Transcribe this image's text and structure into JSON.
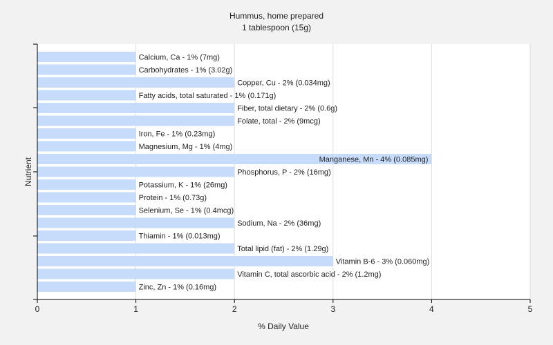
{
  "chart_data": {
    "type": "bar",
    "orientation": "horizontal",
    "title": "Hummus, home prepared",
    "subtitle": "1 tablespoon (15g)",
    "xlabel": "% Daily Value",
    "ylabel": "Nutrient",
    "xlim": [
      0,
      5
    ],
    "xticks": [
      "0",
      "1",
      "2",
      "3",
      "4",
      "5"
    ],
    "grid": true,
    "bar_color": "#c6dcfa",
    "categories": [
      "Calcium, Ca",
      "Carbohydrates",
      "Copper, Cu",
      "Fatty acids, total saturated",
      "Fiber, total dietary",
      "Folate, total",
      "Iron, Fe",
      "Magnesium, Mg",
      "Manganese, Mn",
      "Phosphorus, P",
      "Potassium, K",
      "Protein",
      "Selenium, Se",
      "Sodium, Na",
      "Thiamin",
      "Total lipid (fat)",
      "Vitamin B-6",
      "Vitamin C, total ascorbic acid",
      "Zinc, Zn"
    ],
    "values": [
      1,
      1,
      2,
      1,
      2,
      2,
      1,
      1,
      4,
      2,
      1,
      1,
      1,
      2,
      1,
      2,
      3,
      2,
      1
    ],
    "labels": [
      "Calcium, Ca - 1% (7mg)",
      "Carbohydrates - 1% (3.02g)",
      "Copper, Cu - 2% (0.034mg)",
      "Fatty acids, total saturated - 1% (0.171g)",
      "Fiber, total dietary - 2% (0.6g)",
      "Folate, total - 2% (9mcg)",
      "Iron, Fe - 1% (0.23mg)",
      "Magnesium, Mg - 1% (4mg)",
      "Manganese, Mn - 4% (0.085mg)",
      "Phosphorus, P - 2% (16mg)",
      "Potassium, K - 1% (26mg)",
      "Protein - 1% (0.73g)",
      "Selenium, Se - 1% (0.4mcg)",
      "Sodium, Na - 2% (36mg)",
      "Thiamin - 1% (0.013mg)",
      "Total lipid (fat) - 2% (1.29g)",
      "Vitamin B-6 - 3% (0.060mg)",
      "Vitamin C, total ascorbic acid - 2% (1.2mg)",
      "Zinc, Zn - 1% (0.16mg)"
    ]
  }
}
